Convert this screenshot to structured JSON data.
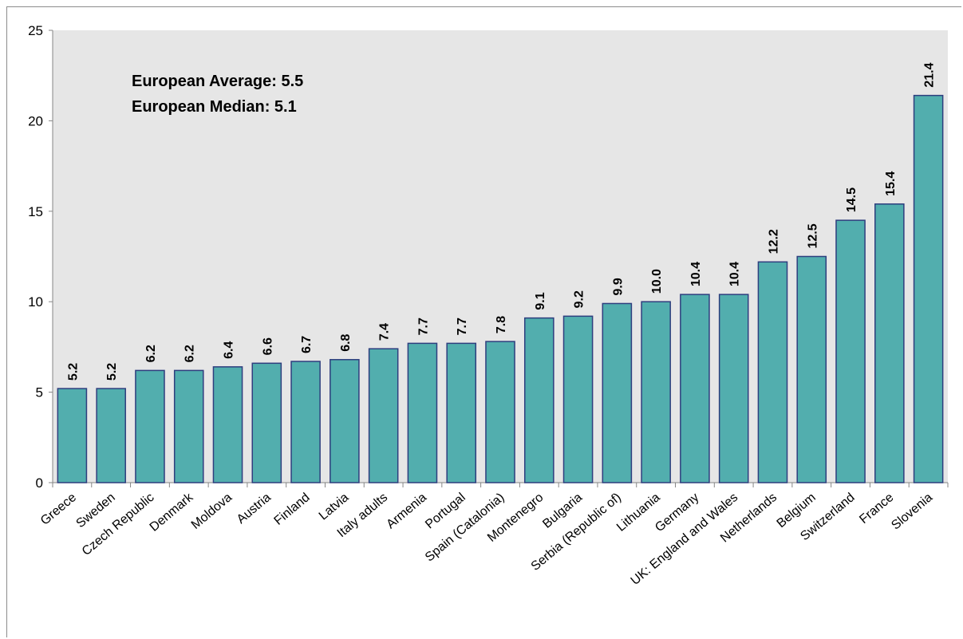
{
  "chart_data": {
    "type": "bar",
    "title": "",
    "xlabel": "",
    "ylabel": "",
    "ylim": [
      0,
      25
    ],
    "yticks": [
      "0",
      "5",
      "10",
      "15",
      "20",
      "25"
    ],
    "grid": false,
    "annotations": [
      "European Average: 5.5",
      "European Median: 5.1"
    ],
    "colors": {
      "bar_fill": "#52aeae",
      "bar_stroke": "#2e3e7e",
      "plot_bg": "#e6e6e6"
    },
    "categories": [
      "Greece",
      "Sweden",
      "Czech Republic",
      "Denmark",
      "Moldova",
      "Austria",
      "Finland",
      "Latvia",
      "Italy adults",
      "Armenia",
      "Portugal",
      "Spain (Catalonia)",
      "Montenegro",
      "Bulgaria",
      "Serbia (Republic of)",
      "Lithuania",
      "Germany",
      "UK: England and Wales",
      "Netherlands",
      "Belgium",
      "Switzerland",
      "France",
      "Slovenia"
    ],
    "values": [
      5.2,
      5.2,
      6.2,
      6.2,
      6.4,
      6.6,
      6.7,
      6.8,
      7.4,
      7.7,
      7.7,
      7.8,
      9.1,
      9.2,
      9.9,
      10.0,
      10.4,
      10.4,
      12.2,
      12.5,
      14.5,
      15.4,
      21.4
    ],
    "value_labels": [
      "5.2",
      "5.2",
      "6.2",
      "6.2",
      "6.4",
      "6.6",
      "6.7",
      "6.8",
      "7.4",
      "7.7",
      "7.7",
      "7.8",
      "9.1",
      "9.2",
      "9.9",
      "10.0",
      "10.4",
      "10.4",
      "12.2",
      "12.5",
      "14.5",
      "15.4",
      "21.4"
    ]
  }
}
